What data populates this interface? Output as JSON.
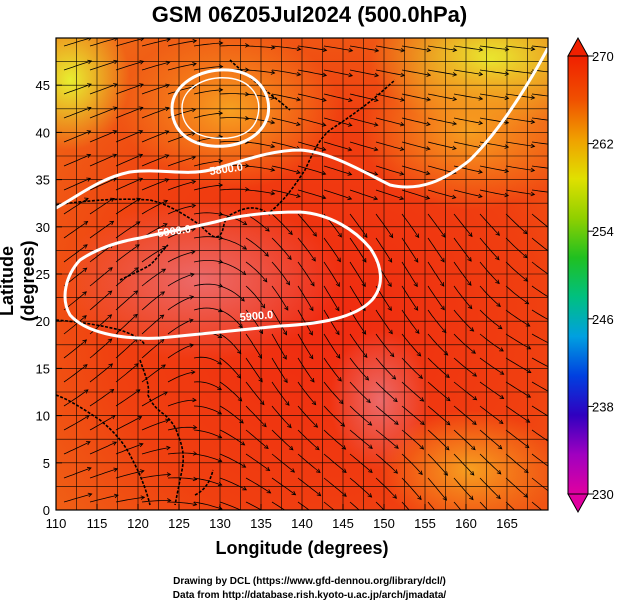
{
  "title": "GSM 06Z05Jul2024 (500.0hPa)",
  "x_axis": {
    "label": "Longitude (degrees)",
    "range": [
      110,
      170
    ],
    "ticks": [
      "110",
      "115",
      "120",
      "125",
      "130",
      "135",
      "140",
      "145",
      "150",
      "155",
      "160",
      "165"
    ]
  },
  "y_axis": {
    "label": "Latitude  (degrees)",
    "range": [
      0,
      50
    ],
    "ticks": [
      "0",
      "5",
      "10",
      "15",
      "20",
      "25",
      "30",
      "35",
      "40",
      "45"
    ]
  },
  "colorbar": {
    "ticks": [
      "230",
      "238",
      "246",
      "254",
      "262",
      "270"
    ],
    "colors": [
      "#e000a0",
      "#a000c0",
      "#3000c0",
      "#0040e0",
      "#00a0e0",
      "#00c080",
      "#20c020",
      "#90d000",
      "#e0e000",
      "#f0a000",
      "#f05000",
      "#f02000"
    ]
  },
  "contours": [
    {
      "label": "5800.0"
    },
    {
      "label": "5900.0"
    },
    {
      "label": "5900.0"
    }
  ],
  "credits": {
    "line1": "Drawing by DCL (https://www.gfd-dennou.org/library/dcl/)",
    "line2": "Data from http://database.rish.kyoto-u.ac.jp/arch/jmadata/"
  }
}
